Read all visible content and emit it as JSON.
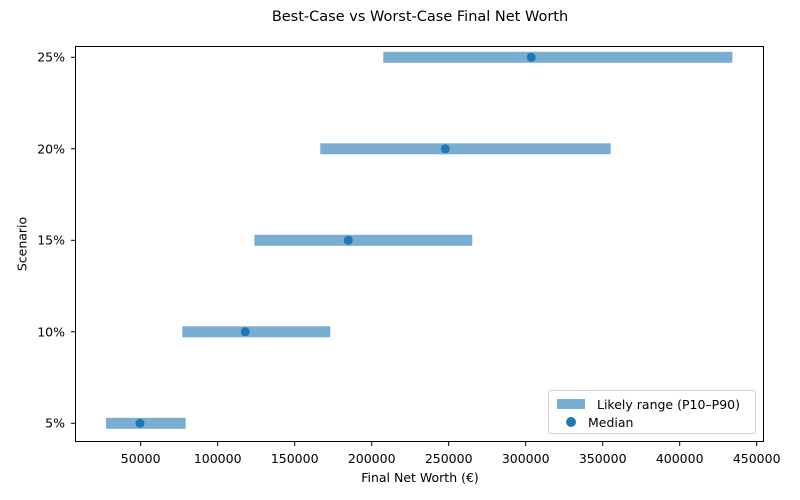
{
  "chart_data": {
    "type": "bar",
    "orientation": "horizontal-range",
    "title": "Best-Case vs Worst-Case Final Net Worth",
    "xlabel": "Final Net Worth (€)",
    "ylabel": "Scenario",
    "categories": [
      "5%",
      "10%",
      "15%",
      "20%",
      "25%"
    ],
    "series": [
      {
        "name": "Likely range (P10–P90)",
        "type": "range",
        "low": [
          27500,
          77000,
          123800,
          166600,
          207500
        ],
        "high": [
          79200,
          173100,
          265300,
          355200,
          434200
        ],
        "color": "#79add2"
      },
      {
        "name": "Median",
        "type": "scatter",
        "values": [
          49500,
          117900,
          184800,
          247800,
          303600
        ],
        "color": "#1f77b4"
      }
    ],
    "xlim": [
      10000,
      453000
    ],
    "xticks": [
      50000,
      100000,
      150000,
      200000,
      250000,
      300000,
      350000,
      400000,
      450000
    ],
    "grid": false,
    "legend_position": "lower right"
  },
  "labels": {
    "title": "Best-Case vs Worst-Case Final Net Worth",
    "xlabel": "Final Net Worth (€)",
    "ylabel": "Scenario",
    "xticks": [
      "50000",
      "100000",
      "150000",
      "200000",
      "250000",
      "300000",
      "350000",
      "400000",
      "450000"
    ],
    "yticks": [
      "5%",
      "10%",
      "15%",
      "20%",
      "25%"
    ],
    "legend": {
      "range": "Likely range (P10–P90)",
      "median": "Median"
    }
  },
  "colors": {
    "range": "#79add2",
    "median": "#1f77b4"
  }
}
